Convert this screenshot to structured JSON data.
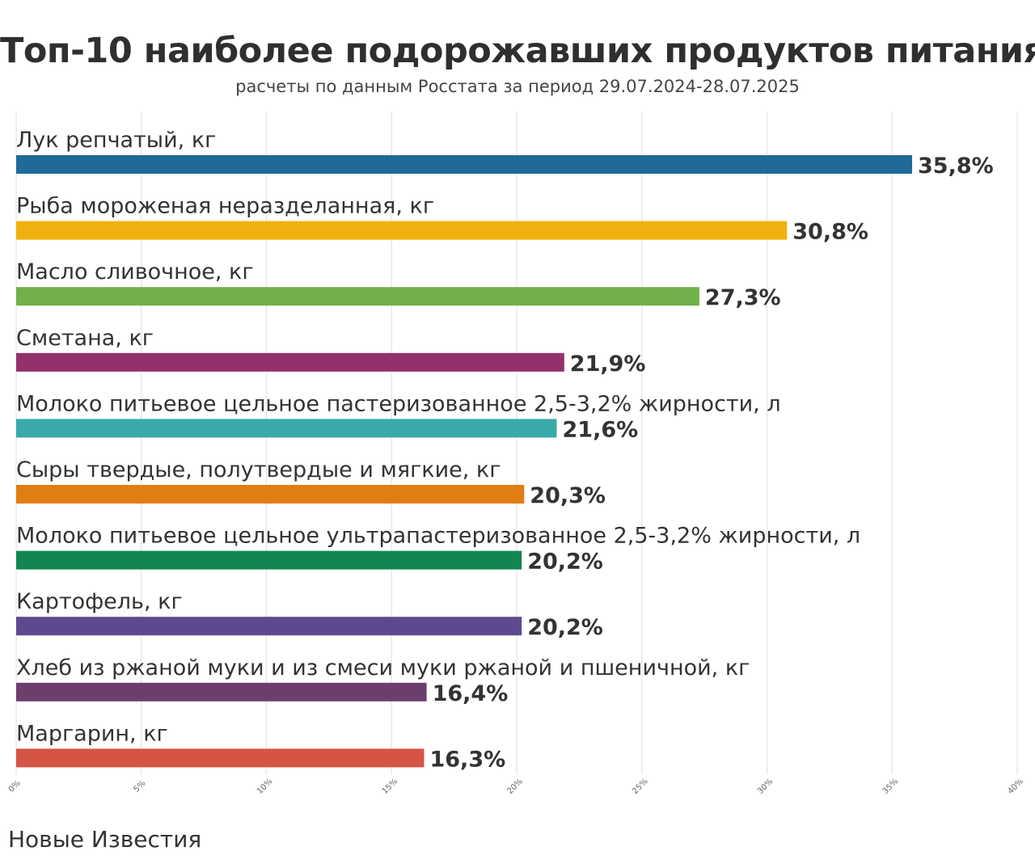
{
  "title": "Топ-10 наиболее подорожавших продуктов питания",
  "subtitle": "расчеты по данным Росстата за период 29.07.2024-28.07.2025",
  "source": "Новые Известия",
  "chart_data": {
    "type": "bar",
    "orientation": "horizontal",
    "categories": [
      "Лук репчатый, кг",
      "Рыба мороженая неразделанная, кг",
      "Масло сливочное, кг",
      "Сметана, кг",
      "Молоко питьевое цельное пастеризованное 2,5-3,2% жирности, л",
      "Сыры твердые, полутвердые и мягкие, кг",
      "Молоко питьевое цельное ультрапастеризованное 2,5-3,2% жирности, л",
      "Картофель, кг",
      "Хлеб из ржаной муки и из смеси муки ржаной и пшеничной, кг",
      "Маргарин, кг"
    ],
    "values": [
      35.8,
      30.8,
      27.3,
      21.9,
      21.6,
      20.3,
      20.2,
      20.2,
      16.4,
      16.3
    ],
    "value_labels": [
      "35,8%",
      "30,8%",
      "27,3%",
      "21,9%",
      "21,6%",
      "20,3%",
      "20,2%",
      "20,2%",
      "16,4%",
      "16,3%"
    ],
    "colors": [
      "#1f6a99",
      "#f0b10e",
      "#72b04b",
      "#93316a",
      "#3aa9a9",
      "#e07e12",
      "#138552",
      "#5d4a8e",
      "#6d3e6b",
      "#d45445"
    ],
    "xlim": [
      0,
      40
    ],
    "xticks": [
      0,
      5,
      10,
      15,
      20,
      25,
      30,
      35,
      40
    ],
    "xtick_labels": [
      "0%",
      "5%",
      "10%",
      "15%",
      "20%",
      "25%",
      "30%",
      "35%",
      "40%"
    ],
    "grid": true,
    "legend": "none"
  }
}
